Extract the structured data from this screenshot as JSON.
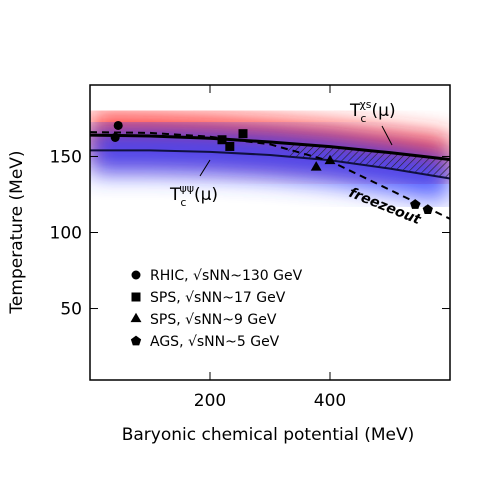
{
  "chart_data": {
    "type": "scatter",
    "xlabel": "Baryonic chemical potential (MeV)",
    "ylabel": "Temperature (MeV)",
    "xlim": [
      0,
      600
    ],
    "ylim": [
      3,
      197
    ],
    "xticks": [
      200,
      400
    ],
    "yticks": [
      50,
      100,
      150
    ],
    "series": [
      {
        "name": "RHIC, √sNN~130 GeV",
        "marker": "circle",
        "color": "#000000",
        "x": [
          47,
          42
        ],
        "y": [
          170.4,
          162.5
        ]
      },
      {
        "name": "SPS, √sNN~17 GeV",
        "marker": "square",
        "color": "#000000",
        "x": [
          220,
          255,
          233
        ],
        "y": [
          161,
          165,
          156.6
        ]
      },
      {
        "name": "SPS, √sNN~9 GeV",
        "marker": "triangle",
        "color": "#000000",
        "x": [
          377,
          400
        ],
        "y": [
          142.8,
          147
        ]
      },
      {
        "name": "AGS, √sNN~5 GeV",
        "marker": "pentagon",
        "color": "#000000",
        "x": [
          542,
          563
        ],
        "y": [
          118.4,
          115
        ]
      }
    ],
    "curves": [
      {
        "style": "solid",
        "color": "#000000",
        "band": "#ff2020",
        "x": [
          0,
          100,
          200,
          300,
          400,
          500,
          600
        ],
        "y": [
          164,
          163.5,
          162,
          159.5,
          156.5,
          152.5,
          148
        ]
      },
      {
        "style": "solid",
        "color": "#101040",
        "band": "#3040ff",
        "x": [
          0,
          100,
          200,
          300,
          400,
          500,
          600
        ],
        "y": [
          154,
          154,
          153,
          151,
          147.5,
          142,
          135.5
        ]
      },
      {
        "style": "dashed",
        "color": "#000000",
        "x": [
          0,
          100,
          200,
          300,
          400,
          500,
          600
        ],
        "y": [
          166,
          165.5,
          163,
          158,
          147,
          128,
          109
        ]
      }
    ],
    "annotations": {
      "chi": {
        "main": "T",
        "sub": "c",
        "sup": "χs",
        "tail": "(μ)"
      },
      "psi": {
        "main": "T",
        "sub": "c",
        "sup": "ψψ",
        "tail": "(μ)"
      },
      "freezeout": "freezeout"
    }
  }
}
